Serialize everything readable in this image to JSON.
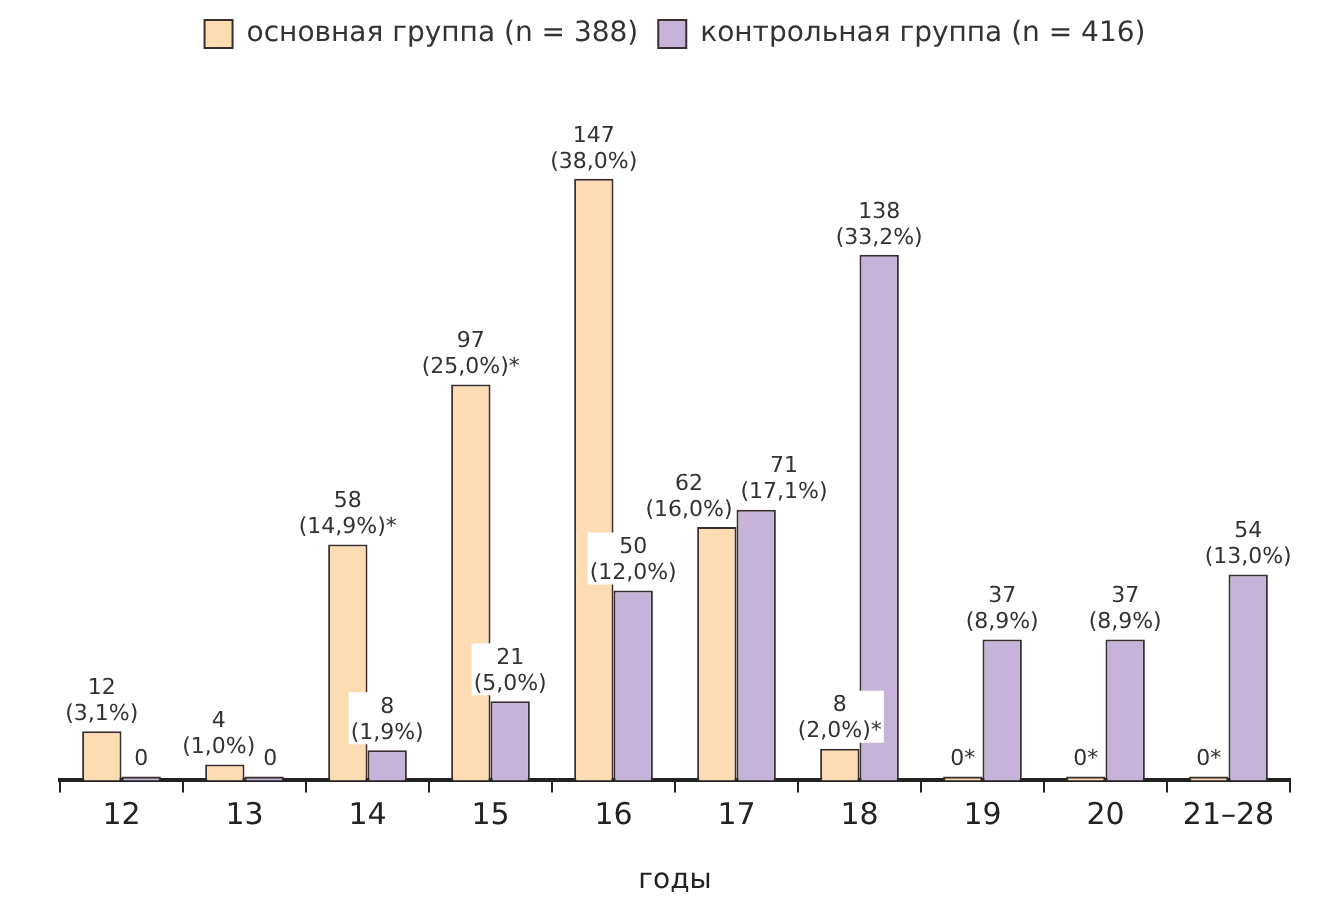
{
  "chart_data": {
    "type": "bar",
    "xlabel": "годы",
    "categories": [
      "12",
      "13",
      "14",
      "15",
      "16",
      "17",
      "18",
      "19",
      "20",
      "21–28"
    ],
    "legend": "top",
    "grid": false,
    "tick_labels": "x",
    "series": [
      {
        "name": "основная группа (n = 388)",
        "color": "#fddbb3",
        "values": [
          3.1,
          1.0,
          14.9,
          25.0,
          38.0,
          16.0,
          2.0,
          0,
          0,
          0
        ],
        "value_labels": [
          "12\n(3,1%)",
          "4\n(1,0%)",
          "58\n(14,9%)*",
          "97\n(25,0%)*",
          "147\n(38,0%)",
          "62\n(16,0%)",
          "8\n(2,0%)*",
          "0*",
          "0*",
          "0*"
        ]
      },
      {
        "name": "контрольная группа (n = 416)",
        "color": "#c5b3d9",
        "values": [
          0,
          0,
          1.9,
          5.0,
          12.0,
          17.1,
          33.2,
          8.9,
          8.9,
          13.0
        ],
        "value_labels": [
          "0",
          "0",
          "8\n(1,9%)",
          "21\n(5,0%)",
          "50\n(12,0%)",
          "71\n(17,1%)",
          "138\n(33,2%)",
          "37\n(8,9%)",
          "37\n(8,9%)",
          "54\n(13,0%)"
        ]
      }
    ]
  }
}
